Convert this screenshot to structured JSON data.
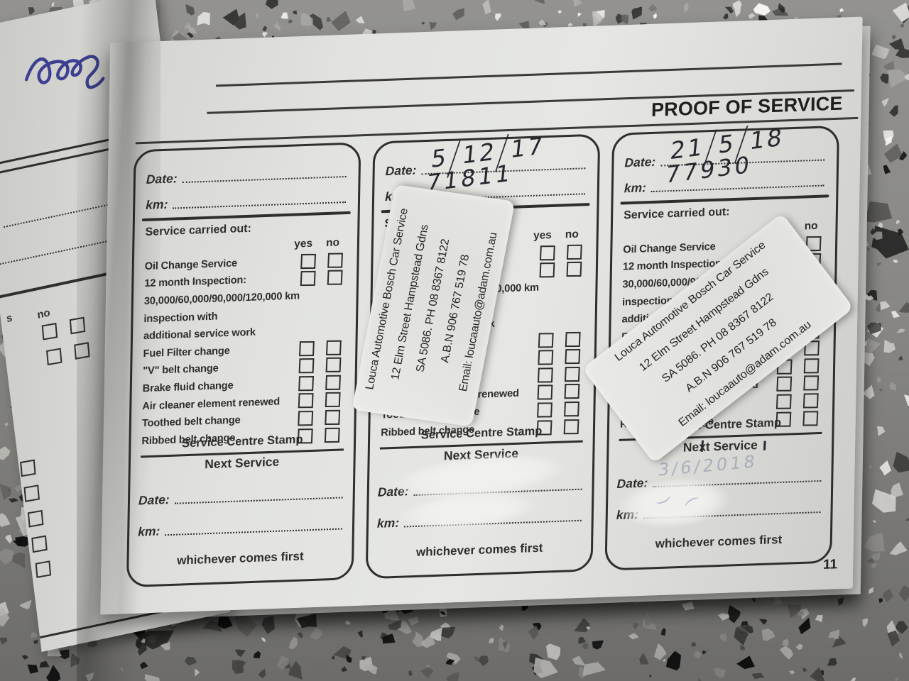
{
  "photo": {
    "floor_base_color": "#8b8a87",
    "paper_color": "#e2e3df",
    "ink_color": "#2e2e2c",
    "pen_color": "#26262e",
    "blue_pen_color": "#3d4090"
  },
  "page": {
    "title": "PROOF OF SERVICE",
    "page_number": "11"
  },
  "form": {
    "date_label": "Date:",
    "km_label": "km:",
    "service_carried_out": "Service carried out:",
    "yes_label": "yes",
    "no_label": "no",
    "checklist": [
      {
        "label": "Oil Change Service",
        "has_boxes": true,
        "bold": true
      },
      {
        "label": "12 month Inspection:",
        "has_boxes": true,
        "bold": true
      },
      {
        "label": "30,000/60,000/90,000/120,000 km",
        "has_boxes": false,
        "bold": true
      },
      {
        "label": "inspection with",
        "has_boxes": false,
        "bold": false
      },
      {
        "label": "additional service work",
        "has_boxes": false,
        "bold": false
      },
      {
        "label": "Fuel Filter change",
        "has_boxes": true,
        "bold": false
      },
      {
        "label": "\"V\" belt change",
        "has_boxes": true,
        "bold": false
      },
      {
        "label": "Brake fluid change",
        "has_boxes": true,
        "bold": false
      },
      {
        "label": "Air cleaner element renewed",
        "has_boxes": true,
        "bold": false
      },
      {
        "label": "Toothed belt change",
        "has_boxes": true,
        "bold": false
      },
      {
        "label": "Ribbed belt change",
        "has_boxes": true,
        "bold": false
      }
    ],
    "service_centre_stamp": "Service Centre Stamp",
    "next_service": "Next Service",
    "footer": "whichever comes first",
    "checkboxes_checked": false
  },
  "records": [
    {
      "date": "",
      "km": "",
      "next_date": "",
      "next_km": "",
      "has_sticker": false
    },
    {
      "date": "5/12/17",
      "km": "71811",
      "next_date": "",
      "next_km": "",
      "has_sticker": true,
      "next_date_whiteout": true,
      "next_km_whiteout": true
    },
    {
      "date": "21/5/18",
      "km": "77930",
      "next_date": "",
      "next_km": "",
      "has_sticker": true,
      "next_date_faint": "3/6/2018",
      "next_km_whiteout": true
    }
  ],
  "sticker": {
    "lines": [
      "Louca Automotive Bosch Car Service",
      "12 Elm Street Hampstead Gdns",
      "SA 5086.  PH 08 8367 8122",
      "A.B.N 906 767 519 78",
      "Email: loucaauto@adam.com.au"
    ]
  },
  "left_page": {
    "yes_fragment": "s",
    "no_fragment": "no"
  }
}
